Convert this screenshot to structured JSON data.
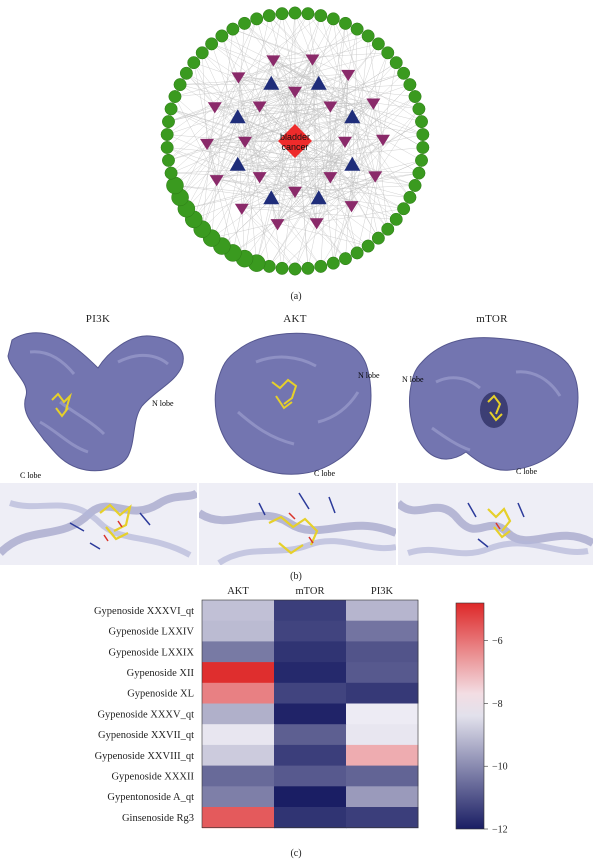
{
  "panel_a": {
    "center_label": "bladder cancer",
    "caption": "(a)",
    "colors": {
      "gene": "#3a9a1f",
      "compound": "#1f2d7a",
      "pathway": "#8a2a6a",
      "center": "#ee2b2b"
    }
  },
  "panel_b": {
    "caption": "(b)",
    "proteins": [
      {
        "name": "PI3K",
        "n_lobe": "N lobe",
        "c_lobe": "C lobe"
      },
      {
        "name": "AKT",
        "n_lobe": "N lobe",
        "c_lobe": "C lobe"
      },
      {
        "name": "mTOR",
        "n_lobe": "N lobe",
        "c_lobe": "C lobe"
      }
    ],
    "surface_color": "#7375b0"
  },
  "panel_c": {
    "caption": "(c)",
    "chart_data": {
      "type": "heatmap",
      "columns": [
        "AKT",
        "mTOR",
        "PI3K"
      ],
      "rows": [
        "Gypenoside XXXVI_qt",
        "Gypenoside LXXIV",
        "Gypenoside LXXIX",
        "Gypenoside XII",
        "Gypenoside XL",
        "Gypenoside XXXV_qt",
        "Gypenoside XXVII_qt",
        "Gypenoside XXVIII_qt",
        "Gypenoside XXXII",
        "Gypentonoside A_qt",
        "Ginsenoside Rg3"
      ],
      "values": [
        [
          -9.0,
          -11.4,
          -9.2
        ],
        [
          -9.1,
          -11.3,
          -10.4
        ],
        [
          -10.3,
          -11.6,
          -11.0
        ],
        [
          -4.9,
          -11.8,
          -10.9
        ],
        [
          -6.2,
          -11.3,
          -11.5
        ],
        [
          -9.3,
          -11.9,
          -8.2
        ],
        [
          -8.3,
          -10.8,
          -8.3
        ],
        [
          -8.8,
          -11.4,
          -6.9
        ],
        [
          -10.6,
          -10.9,
          -10.7
        ],
        [
          -10.2,
          -12.0,
          -9.7
        ],
        [
          -5.6,
          -11.6,
          -11.4
        ]
      ],
      "colorbar": {
        "min": -12,
        "max": -4.8,
        "ticks": [
          -6,
          -8,
          -10,
          -12
        ]
      }
    }
  }
}
